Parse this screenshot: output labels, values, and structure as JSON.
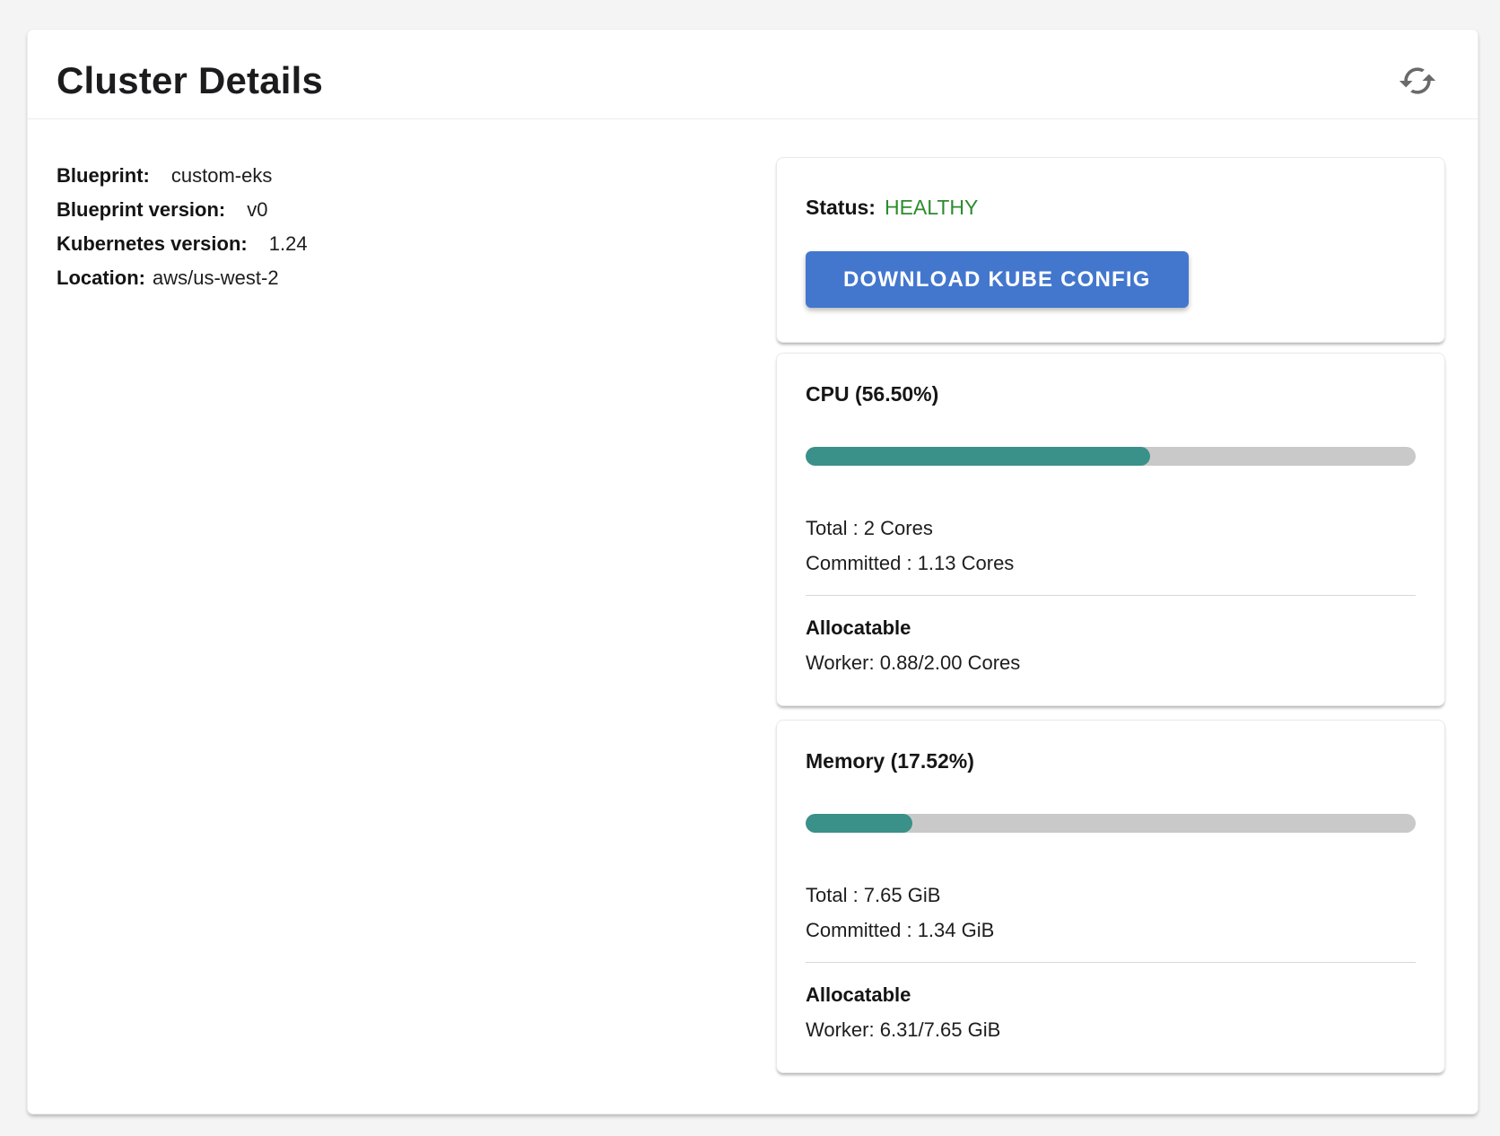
{
  "panel": {
    "title": "Cluster Details"
  },
  "info": {
    "rows": [
      {
        "label": "Blueprint:",
        "value": "custom-eks"
      },
      {
        "label": "Blueprint version:",
        "value": "v0"
      },
      {
        "label": "Kubernetes version:",
        "value": "1.24"
      },
      {
        "label": "Location:",
        "value": "aws/us-west-2"
      }
    ]
  },
  "status": {
    "label": "Status:",
    "value": "HEALTHY",
    "value_color": "#2e8b2e",
    "button_label": "DOWNLOAD KUBE CONFIG",
    "button_color": "#4377ce"
  },
  "cpu": {
    "title": "CPU (56.50%)",
    "percent": 56.5,
    "total": "Total : 2 Cores",
    "committed": "Committed : 1.13 Cores",
    "allocatable_label": "Allocatable",
    "worker": "Worker: 0.88/2.00 Cores",
    "bar_color": "#3a9189",
    "track_color": "#c9c9c9"
  },
  "memory": {
    "title": "Memory (17.52%)",
    "percent": 17.52,
    "total": "Total : 7.65 GiB",
    "committed": "Committed : 1.34 GiB",
    "allocatable_label": "Allocatable",
    "worker": "Worker: 6.31/7.65 GiB",
    "bar_color": "#3a9189",
    "track_color": "#c9c9c9"
  }
}
